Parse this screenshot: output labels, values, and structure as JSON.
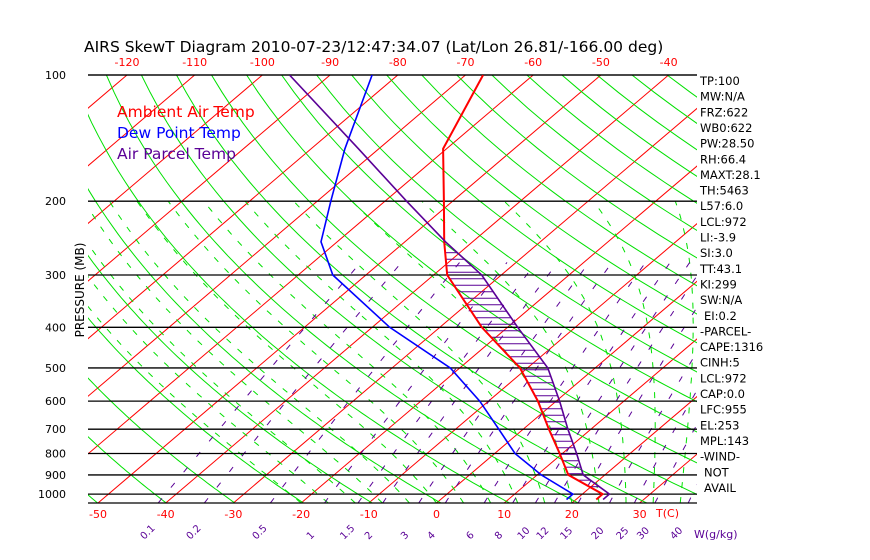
{
  "chart_data": {
    "type": "line",
    "subtype": "skew-t log-p",
    "title": "AIRS SkewT Diagram 2010-07-23/12:47:34.07 (Lat/Lon 26.81/-166.00 deg)",
    "ylabel": "PRESSURE (MB)",
    "xlabel": "T(C)",
    "mixing_ratio_label": "W(g/kg)",
    "ylim": [
      1050,
      100
    ],
    "pressure_ticks": [
      100,
      200,
      300,
      400,
      500,
      600,
      700,
      800,
      900,
      1000
    ],
    "bottom_temp_ticks": [
      -50,
      -40,
      -30,
      -20,
      -10,
      0,
      10,
      20,
      30
    ],
    "top_temp_ticks": [
      -120,
      -110,
      -100,
      -90,
      -80,
      -70,
      -60,
      -50,
      -40
    ],
    "mixing_ratio_ticks": [
      "0.1",
      "0.2",
      "0.5",
      "1",
      "1.5",
      "2",
      "3",
      "4",
      "6",
      "8",
      "10",
      "12",
      "15",
      "20",
      "25",
      "30",
      "40"
    ],
    "legend": [
      {
        "label": "Ambient Air Temp",
        "color": "#ff0000"
      },
      {
        "label": "Dew Point Temp",
        "color": "#0000ff"
      },
      {
        "label": "Air Parcel Temp",
        "color": "#5a0096"
      }
    ],
    "legend_placement": "top-left",
    "pressure": [
      1000,
      900,
      800,
      700,
      600,
      500,
      400,
      300,
      250,
      200,
      150,
      100
    ],
    "series": [
      {
        "name": "Ambient Air Temp",
        "values": [
          23.0,
          14.6,
          9.6,
          3.8,
          -2.7,
          -11.1,
          -23.8,
          -38.0,
          -44.2,
          -51.3,
          -60.5,
          -67.4
        ]
      },
      {
        "name": "Dew Point Temp",
        "values": [
          18.6,
          10.6,
          3.0,
          -3.6,
          -11.3,
          -21.4,
          -37.4,
          -54.9,
          -62.4,
          -68.0,
          -75.0,
          -83.8
        ]
      },
      {
        "name": "Air Parcel Temp",
        "values": [
          24.0,
          16.8,
          12.1,
          6.6,
          0.5,
          -7.0,
          -18.5,
          -32.9,
          -44.0,
          -56.8,
          -73.0,
          -96.0
        ]
      }
    ],
    "cape_shading_range_mb": [
      960,
      265
    ]
  },
  "info_panel": [
    "TP:100",
    "MW:N/A",
    "FRZ:622",
    "WB0:622",
    "PW:28.50",
    "RH:66.4",
    "MAXT:28.1",
    "TH:5463",
    "L57:6.0",
    "LCL:972",
    "LI:-3.9",
    "SI:3.0",
    "TT:43.1",
    "KI:299",
    "SW:N/A",
    "EI:0.2",
    "-PARCEL-",
    "CAPE:1316",
    "CINH:5",
    "LCL:972",
    "CAP:0.0",
    "LFC:955",
    "EL:253",
    "MPL:143",
    "-WIND-",
    "NOT",
    "AVAIL"
  ],
  "colors": {
    "isotherm": "#ff0000",
    "dry_adiabat": "#00e000",
    "moist_adiabat": "#00e000",
    "mixing_ratio": "#5a0096",
    "temp": "#ff0000",
    "dewpoint": "#0000ff",
    "parcel": "#5a0096",
    "isobar": "#000000"
  }
}
